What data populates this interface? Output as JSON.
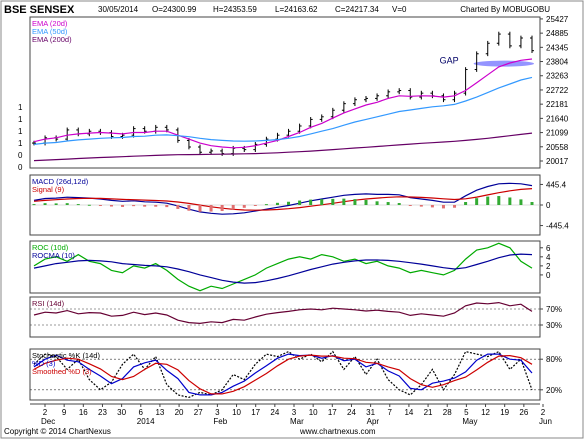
{
  "header": {
    "symbol": "BSE SENSEX",
    "date": "30/05/2014",
    "open": "O=24300.99",
    "high": "H=24353.59",
    "low": "L=24163.62",
    "close": "C=24217.34",
    "volume": "V=0",
    "credit": "Charted By MOBUGOBU"
  },
  "footer": {
    "copyright": "Copyright © 2014 ChartNexus",
    "site": "www.chartnexus.com"
  },
  "colors": {
    "price": "#000000",
    "ema20": "#cc00cc",
    "ema50": "#3399ff",
    "ema200": "#660066",
    "macd": "#000099",
    "signal": "#cc0000",
    "histogram": "#e07070",
    "roc": "#00aa00",
    "rocma": "#000099",
    "rsi": "#660033",
    "stoch_k": "#000000",
    "stoch_d": "#0000cc",
    "stoch_smooth": "#cc0000",
    "gap": "#6666ff"
  },
  "chart_data": [
    {
      "type": "line",
      "panel": "price",
      "legend": [
        "EMA (20d)",
        "EMA (50d)",
        "EMA (200d)"
      ],
      "y_ticks": [
        "25427",
        "24885",
        "24345",
        "23804",
        "23263",
        "22722",
        "22181",
        "21640",
        "21099",
        "20558",
        "20017"
      ],
      "left_ticks": [
        "1",
        "1",
        "1",
        "1",
        "0",
        "0"
      ],
      "ylim": [
        19750,
        25500
      ],
      "annotation": "GAP",
      "gap_range": [
        23650,
        23800
      ],
      "series": [
        {
          "key": "close",
          "values": [
            20700,
            20900,
            20850,
            21200,
            21050,
            21150,
            21100,
            20950,
            21000,
            21250,
            21150,
            21300,
            21200,
            20800,
            20550,
            20350,
            20400,
            20300,
            20500,
            20450,
            20650,
            20850,
            21000,
            21150,
            21350,
            21600,
            21700,
            21950,
            22200,
            22350,
            22400,
            22500,
            22650,
            22700,
            22450,
            22600,
            22500,
            22350,
            22600,
            23500,
            24100,
            24500,
            24850,
            24400,
            24700,
            24217
          ]
        },
        {
          "key": "ema20",
          "values": [
            20750,
            20850,
            20900,
            21000,
            21050,
            21080,
            21100,
            21080,
            21050,
            21100,
            21100,
            21150,
            21150,
            21000,
            20850,
            20700,
            20600,
            20550,
            20520,
            20540,
            20600,
            20700,
            20800,
            20950,
            21100,
            21300,
            21450,
            21650,
            21850,
            22000,
            22150,
            22250,
            22400,
            22500,
            22480,
            22500,
            22490,
            22450,
            22500,
            22700,
            23000,
            23300,
            23600,
            23750,
            23850,
            23900
          ]
        },
        {
          "key": "ema50",
          "values": [
            20650,
            20700,
            20720,
            20780,
            20820,
            20850,
            20880,
            20900,
            20910,
            20950,
            20960,
            21000,
            21010,
            20980,
            20940,
            20880,
            20830,
            20800,
            20780,
            20770,
            20780,
            20800,
            20830,
            20880,
            20950,
            21050,
            21150,
            21250,
            21380,
            21500,
            21600,
            21700,
            21800,
            21900,
            21960,
            22020,
            22080,
            22120,
            22170,
            22300,
            22450,
            22620,
            22800,
            22950,
            23100,
            23200
          ]
        },
        {
          "key": "ema200",
          "values": [
            20030,
            20050,
            20070,
            20090,
            20110,
            20130,
            20150,
            20165,
            20180,
            20200,
            20215,
            20230,
            20245,
            20255,
            20260,
            20265,
            20270,
            20275,
            20282,
            20290,
            20300,
            20315,
            20330,
            20350,
            20370,
            20395,
            20420,
            20450,
            20480,
            20510,
            20540,
            20570,
            20600,
            20630,
            20660,
            20690,
            20715,
            20740,
            20765,
            20800,
            20840,
            20880,
            20930,
            20980,
            21030,
            21080
          ]
        }
      ]
    },
    {
      "type": "line",
      "panel": "macd",
      "legend": [
        "MACD (26d,12d)",
        "Signal (9)"
      ],
      "y_ticks": [
        "445.4",
        "0",
        "-445.4"
      ],
      "ylim": [
        -650,
        650
      ],
      "series": [
        {
          "key": "macd",
          "values": [
            100,
            140,
            150,
            170,
            160,
            150,
            130,
            100,
            80,
            90,
            70,
            60,
            40,
            -20,
            -90,
            -150,
            -180,
            -200,
            -190,
            -170,
            -130,
            -90,
            -50,
            -10,
            40,
            90,
            130,
            170,
            210,
            230,
            240,
            230,
            230,
            220,
            160,
            130,
            100,
            60,
            60,
            200,
            320,
            400,
            460,
            470,
            460,
            420
          ]
        },
        {
          "key": "signal",
          "values": [
            80,
            100,
            115,
            130,
            140,
            145,
            142,
            133,
            122,
            115,
            106,
            97,
            86,
            65,
            34,
            -3,
            -38,
            -70,
            -94,
            -109,
            -113,
            -109,
            -97,
            -80,
            -56,
            -27,
            4,
            37,
            72,
            103,
            130,
            150,
            166,
            177,
            174,
            165,
            152,
            134,
            119,
            135,
            172,
            218,
            266,
            307,
            338,
            355
          ]
        },
        {
          "key": "histogram",
          "values": [
            20,
            40,
            35,
            40,
            20,
            5,
            -12,
            -33,
            -42,
            -25,
            -36,
            -37,
            -46,
            -85,
            -124,
            -147,
            -142,
            -130,
            -96,
            -61,
            -17,
            19,
            47,
            70,
            96,
            117,
            126,
            133,
            138,
            127,
            110,
            80,
            64,
            43,
            -14,
            -35,
            -52,
            -74,
            -59,
            65,
            148,
            182,
            194,
            163,
            122,
            65
          ]
        }
      ]
    },
    {
      "type": "line",
      "panel": "roc",
      "legend": [
        "ROC (10d)",
        "ROCMA (10)"
      ],
      "y_ticks": [
        "6",
        "4",
        "2",
        "0"
      ],
      "ylim": [
        -4,
        7.5
      ],
      "series": [
        {
          "key": "roc",
          "values": [
            2,
            3.5,
            4,
            3,
            4.5,
            3,
            2.5,
            1,
            0.5,
            2,
            1.5,
            2.5,
            1,
            -1,
            -2.5,
            -3.5,
            -2.5,
            -3,
            -2,
            -1,
            0,
            1.5,
            2.5,
            3.5,
            4,
            3.5,
            4.5,
            4,
            3,
            3.5,
            2.5,
            3,
            2,
            1.5,
            0.5,
            1,
            0.5,
            0,
            1,
            3.5,
            5.5,
            6,
            7,
            6,
            3,
            1.5
          ]
        },
        {
          "key": "rocma",
          "values": [
            1.5,
            2,
            2.5,
            2.8,
            3.1,
            3.2,
            3.1,
            2.9,
            2.5,
            2.3,
            2.1,
            2,
            1.8,
            1.3,
            0.7,
            0,
            -0.6,
            -1.2,
            -1.6,
            -1.8,
            -1.7,
            -1.3,
            -0.8,
            -0.2,
            0.5,
            1.2,
            1.8,
            2.4,
            2.8,
            3.1,
            3.3,
            3.3,
            3.2,
            3.0,
            2.7,
            2.4,
            2.0,
            1.6,
            1.3,
            1.6,
            2.3,
            3.0,
            3.8,
            4.4,
            4.6,
            4.5
          ]
        }
      ]
    },
    {
      "type": "line",
      "panel": "rsi",
      "legend": [
        "RSI (14d)"
      ],
      "y_ticks": [
        "70%",
        "30%"
      ],
      "ylim": [
        0,
        100
      ],
      "levels": [
        70,
        30
      ],
      "series": [
        {
          "key": "rsi",
          "values": [
            55,
            62,
            60,
            66,
            58,
            61,
            60,
            52,
            54,
            62,
            56,
            60,
            55,
            42,
            36,
            34,
            38,
            36,
            44,
            42,
            50,
            57,
            61,
            64,
            68,
            70,
            68,
            72,
            70,
            68,
            65,
            67,
            64,
            62,
            54,
            58,
            55,
            52,
            60,
            78,
            85,
            83,
            86,
            78,
            82,
            64
          ]
        }
      ]
    },
    {
      "type": "line",
      "panel": "stochastic",
      "legend": [
        "Stochastic %K (14d)",
        "%D (3)",
        "Smoothed %D (3)"
      ],
      "y_ticks": [
        "80%",
        "20%"
      ],
      "ylim": [
        0,
        100
      ],
      "levels": [
        80,
        20
      ],
      "series": [
        {
          "key": "k",
          "values": [
            70,
            90,
            85,
            60,
            80,
            40,
            20,
            35,
            70,
            90,
            60,
            85,
            30,
            10,
            5,
            15,
            10,
            20,
            50,
            40,
            70,
            90,
            85,
            95,
            80,
            90,
            75,
            95,
            60,
            85,
            50,
            80,
            40,
            20,
            10,
            30,
            60,
            20,
            50,
            95,
            90,
            85,
            95,
            60,
            80,
            20
          ]
        },
        {
          "key": "d",
          "values": [
            65,
            80,
            88,
            78,
            75,
            60,
            47,
            32,
            42,
            65,
            73,
            78,
            58,
            42,
            15,
            10,
            10,
            15,
            27,
            37,
            53,
            67,
            82,
            90,
            87,
            88,
            82,
            87,
            77,
            80,
            65,
            72,
            57,
            47,
            23,
            20,
            33,
            37,
            43,
            55,
            78,
            90,
            90,
            80,
            78,
            53
          ]
        },
        {
          "key": "smooth",
          "values": [
            60,
            72,
            78,
            82,
            80,
            71,
            61,
            46,
            40,
            46,
            60,
            72,
            70,
            59,
            38,
            22,
            12,
            12,
            17,
            26,
            39,
            52,
            67,
            80,
            86,
            88,
            86,
            86,
            82,
            81,
            74,
            72,
            65,
            59,
            42,
            30,
            25,
            30,
            38,
            45,
            59,
            74,
            86,
            87,
            83,
            70
          ]
        }
      ]
    }
  ],
  "x_axis": {
    "ticks": [
      "2",
      "9",
      "16",
      "23",
      "30",
      "6",
      "13",
      "20",
      "27",
      "3",
      "10",
      "17",
      "24",
      "3",
      "10",
      "17",
      "24",
      "31",
      "7",
      "14",
      "21",
      "28",
      "5",
      "12",
      "19",
      "26",
      "2"
    ],
    "months": [
      "Dec",
      "2014",
      "Feb",
      "Mar",
      "Apr",
      "May",
      "Jun"
    ]
  }
}
